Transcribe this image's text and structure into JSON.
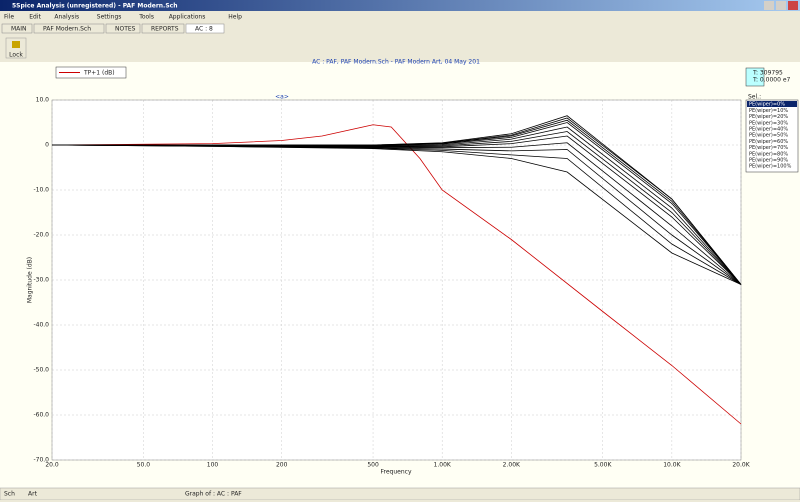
{
  "window": {
    "title": "5Spice Analysis (unregistered) - PAF Modern.Sch",
    "menu": [
      "File",
      "Edit",
      "Analysis",
      "Settings",
      "Tools",
      "Applications",
      "Help"
    ],
    "tabs": [
      "MAIN",
      "PAF Modern.Sch",
      "NOTES",
      "REPORTS",
      "AC : 8"
    ],
    "toolbar": [
      "Lock"
    ],
    "cursor_box": [
      "T: 309795",
      "T: 0.0000 e7"
    ],
    "selection_header": "Sel.:",
    "status": [
      "Sch",
      "Art",
      "Graph of : AC : PAF"
    ]
  },
  "chart_data": {
    "type": "line",
    "title": "AC : PAF, PAF Modern.Sch - PAF Modern Art, 04 May 201",
    "marker_label": "<a>",
    "xlabel": "Frequency",
    "ylabel": "Magnitude (dB)",
    "xscale": "log",
    "grid": true,
    "xlim": [
      20,
      20000
    ],
    "ylim": [
      -70,
      10
    ],
    "xticks": [
      {
        "value": 20,
        "label": "20.0"
      },
      {
        "value": 50,
        "label": "50.0"
      },
      100,
      200,
      500,
      {
        "value": 1000,
        "label": "1.00K"
      },
      {
        "value": 2000,
        "label": "2.00K"
      },
      {
        "value": 5000,
        "label": "5.00K"
      },
      {
        "value": 10000,
        "label": "10.0K"
      },
      {
        "value": 20000,
        "label": "20.0K"
      }
    ],
    "yticks": [
      {
        "value": 10,
        "label": "10.0"
      },
      0,
      {
        "value": -10,
        "label": "-10.0"
      },
      {
        "value": -20,
        "label": "-20.0"
      },
      {
        "value": -30,
        "label": "-30.0"
      },
      {
        "value": -40,
        "label": "-40.0"
      },
      {
        "value": -50,
        "label": "-50.0"
      },
      {
        "value": -60,
        "label": "-60.0"
      },
      {
        "value": -70,
        "label": "-70.0"
      }
    ],
    "series": [
      {
        "name": "TP+1 (dB)",
        "color": "#cc0000",
        "x": [
          20,
          100,
          200,
          300,
          500,
          600,
          800,
          1000,
          2000,
          5000,
          10000,
          20000
        ],
        "values": [
          0,
          0.3,
          1,
          2,
          4.5,
          4,
          -3,
          -10,
          -21,
          -37,
          -49,
          -62
        ]
      },
      {
        "name": "PE(wiper)=0%",
        "color": "#000000",
        "x": [
          20,
          100,
          500,
          1000,
          2000,
          3500,
          10000,
          20000
        ],
        "values": [
          0,
          0,
          0,
          0.5,
          2.5,
          6.5,
          -12,
          -31
        ]
      },
      {
        "name": "PE(wiper)=10%",
        "color": "#000000",
        "x": [
          20,
          100,
          500,
          1000,
          2000,
          3500,
          10000,
          20000
        ],
        "values": [
          0,
          0,
          0,
          0.4,
          2.2,
          6,
          -12,
          -31
        ]
      },
      {
        "name": "PE(wiper)=20%",
        "color": "#000000",
        "x": [
          20,
          100,
          500,
          1000,
          2000,
          3500,
          10000,
          20000
        ],
        "values": [
          0,
          0,
          -0.1,
          0.3,
          2,
          5.5,
          -12.5,
          -31
        ]
      },
      {
        "name": "PE(wiper)=30%",
        "color": "#000000",
        "x": [
          20,
          100,
          500,
          1000,
          2000,
          3500,
          10000,
          20000
        ],
        "values": [
          0,
          0,
          -0.1,
          0.2,
          1.7,
          5,
          -13,
          -31
        ]
      },
      {
        "name": "PE(wiper)=40%",
        "color": "#000000",
        "x": [
          20,
          100,
          500,
          1000,
          2000,
          3500,
          10000,
          20000
        ],
        "values": [
          0,
          0,
          -0.2,
          0,
          1.3,
          4,
          -14,
          -31
        ]
      },
      {
        "name": "PE(wiper)=50%",
        "color": "#000000",
        "x": [
          20,
          100,
          500,
          1000,
          2000,
          3500,
          10000,
          20000
        ],
        "values": [
          0,
          -0.1,
          -0.3,
          -0.2,
          0.8,
          3,
          -15,
          -31
        ]
      },
      {
        "name": "PE(wiper)=60%",
        "color": "#000000",
        "x": [
          20,
          100,
          500,
          1000,
          2000,
          3500,
          10000,
          20000
        ],
        "values": [
          0,
          -0.1,
          -0.4,
          -0.4,
          0.3,
          2,
          -16,
          -31
        ]
      },
      {
        "name": "PE(wiper)=70%",
        "color": "#000000",
        "x": [
          20,
          100,
          500,
          1000,
          2000,
          3500,
          10000,
          20000
        ],
        "values": [
          0,
          -0.2,
          -0.5,
          -0.6,
          -0.5,
          0.5,
          -18,
          -31
        ]
      },
      {
        "name": "PE(wiper)=80%",
        "color": "#000000",
        "x": [
          20,
          100,
          500,
          1000,
          2000,
          3500,
          10000,
          20000
        ],
        "values": [
          0,
          -0.2,
          -0.6,
          -0.9,
          -1.3,
          -1,
          -20,
          -31
        ]
      },
      {
        "name": "PE(wiper)=90%",
        "color": "#000000",
        "x": [
          20,
          100,
          500,
          1000,
          2000,
          3500,
          10000,
          20000
        ],
        "values": [
          0,
          -0.3,
          -0.7,
          -1.2,
          -2.2,
          -3,
          -22,
          -31
        ]
      },
      {
        "name": "PE(wiper)=100%",
        "color": "#000000",
        "x": [
          20,
          100,
          500,
          1000,
          2000,
          3500,
          10000,
          20000
        ],
        "values": [
          0,
          -0.3,
          -0.8,
          -1.5,
          -3,
          -6,
          -24,
          -31
        ]
      }
    ]
  }
}
